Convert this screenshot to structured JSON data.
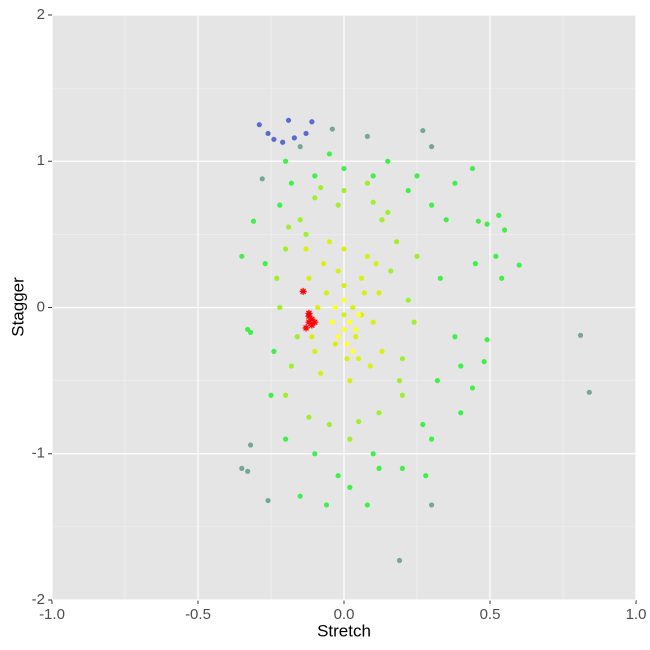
{
  "chart_data": {
    "type": "scatter",
    "x_label": "Stretch",
    "y_label": "Stagger",
    "xlim": [
      -1,
      1
    ],
    "ylim": [
      -2,
      2
    ],
    "xticks": [
      {
        "value": -1,
        "label": "-1.0"
      },
      -0.5,
      {
        "value": 0,
        "label": "0.0"
      },
      0.5,
      {
        "value": 1,
        "label": "1.0"
      }
    ],
    "yticks": [
      -2,
      -1,
      0,
      1,
      2
    ],
    "grid": true,
    "minor_grid": true,
    "series": [
      {
        "color": "#5a6ad0",
        "marker": "dot",
        "x": [
          -0.29,
          -0.19,
          -0.11,
          -0.26,
          -0.24,
          -0.21,
          -0.13,
          -0.17
        ],
        "values": [
          1.25,
          1.28,
          1.27,
          1.19,
          1.15,
          1.13,
          1.19,
          1.16
        ]
      },
      {
        "color": "#74a894",
        "marker": "dot",
        "x": [
          -0.04,
          0.27,
          0.3,
          0.08,
          -0.28,
          -0.15,
          0.81,
          0.84,
          -0.35,
          -0.33,
          -0.26,
          0.3,
          0.19,
          -0.32
        ],
        "values": [
          1.22,
          1.21,
          1.1,
          1.17,
          0.88,
          1.1,
          -0.19,
          -0.58,
          -1.1,
          -1.12,
          -1.32,
          -1.35,
          -1.73,
          -0.94
        ]
      },
      {
        "color": "#3ff04a",
        "marker": "dot",
        "x": [
          0.46,
          0.49,
          0.53,
          0.55,
          0.6,
          0.52,
          0.54,
          0.45,
          0.49,
          0.48,
          0.44,
          0.4,
          -0.35,
          -0.32,
          -0.33,
          -0.31,
          0.44,
          0.38,
          0.02,
          -0.06,
          -0.15,
          0.08,
          0.28,
          0.4,
          0.35,
          0.3,
          0.25,
          -0.22,
          -0.2,
          0.27,
          0.2,
          0.1,
          -0.1,
          -0.2,
          -0.25,
          -0.27,
          0.33,
          0.38,
          0.32,
          0.0,
          0.1,
          -0.1,
          0.15,
          -0.05,
          0.22,
          -0.24,
          0.3,
          -0.18,
          0.12,
          -0.02
        ],
        "values": [
          0.59,
          0.57,
          0.63,
          0.53,
          0.29,
          0.35,
          0.2,
          0.3,
          -0.22,
          -0.37,
          -0.55,
          -0.72,
          0.35,
          -0.17,
          -0.15,
          0.59,
          0.95,
          0.85,
          -1.23,
          -1.35,
          -1.29,
          -1.35,
          -1.15,
          -0.4,
          0.6,
          0.7,
          0.9,
          0.7,
          1.0,
          -0.8,
          -1.1,
          -1.0,
          -1.0,
          -0.9,
          -0.6,
          0.3,
          0.2,
          -0.2,
          -0.5,
          0.95,
          0.9,
          0.9,
          1.0,
          1.05,
          0.8,
          -0.3,
          -0.9,
          0.85,
          -1.1,
          -1.15
        ]
      },
      {
        "color": "#9ef02c",
        "marker": "dot",
        "x": [
          -0.2,
          -0.18,
          -0.22,
          -0.15,
          0.18,
          0.2,
          0.22,
          0.15,
          -0.1,
          0.1,
          0.0,
          -0.05,
          0.05,
          -0.2,
          0.2,
          -0.16,
          0.16,
          -0.12,
          0.12,
          0.24,
          -0.23,
          0.08,
          -0.08,
          0.02,
          -0.02,
          0.19,
          -0.19,
          0.13,
          -0.13,
          0.25
        ],
        "values": [
          0.4,
          -0.4,
          0.0,
          0.6,
          0.45,
          -0.35,
          0.05,
          0.65,
          0.75,
          0.72,
          0.8,
          -0.8,
          -0.78,
          -0.6,
          -0.6,
          -0.2,
          0.25,
          -0.75,
          -0.72,
          -0.1,
          0.2,
          0.85,
          0.82,
          -0.9,
          0.7,
          -0.5,
          0.55,
          0.6,
          0.5,
          0.35
        ]
      },
      {
        "color": "#d8f010",
        "marker": "dot",
        "x": [
          0.0,
          0.03,
          -0.03,
          0.06,
          -0.06,
          0.1,
          -0.1,
          0.08,
          -0.08,
          0.0,
          0.02,
          -0.02,
          0.12,
          -0.12,
          0.05,
          -0.05,
          0.09,
          -0.09,
          0.0,
          0.04,
          -0.04,
          0.11,
          -0.11,
          0.07,
          -0.07,
          0.0,
          0.13,
          -0.13,
          0.01,
          0.06
        ],
        "values": [
          -0.15,
          0.0,
          -0.25,
          0.2,
          0.1,
          -0.1,
          -0.3,
          0.35,
          -0.45,
          0.4,
          -0.5,
          0.25,
          0.1,
          0.2,
          -0.35,
          0.45,
          -0.4,
          0.0,
          -0.05,
          -0.2,
          -0.1,
          0.3,
          -0.2,
          0.1,
          0.3,
          0.15,
          -0.3,
          0.4,
          -0.35,
          -0.05
        ]
      },
      {
        "color": "#ffff30",
        "marker": "dot",
        "x": [
          0.0,
          0.02,
          -0.02,
          0.04,
          -0.04,
          0.01,
          0.03,
          -0.03,
          0.0,
          0.05
        ],
        "values": [
          -0.15,
          -0.1,
          -0.2,
          -0.15,
          -0.1,
          -0.25,
          -0.3,
          0.0,
          0.05,
          -0.05
        ]
      },
      {
        "color": "#ff0000",
        "marker": "star",
        "x": [
          -0.14,
          -0.12,
          -0.11,
          -0.12,
          -0.13,
          -0.11,
          -0.12,
          -0.1
        ],
        "values": [
          0.11,
          -0.06,
          -0.08,
          -0.1,
          -0.14,
          -0.12,
          -0.04,
          -0.1
        ]
      }
    ]
  }
}
